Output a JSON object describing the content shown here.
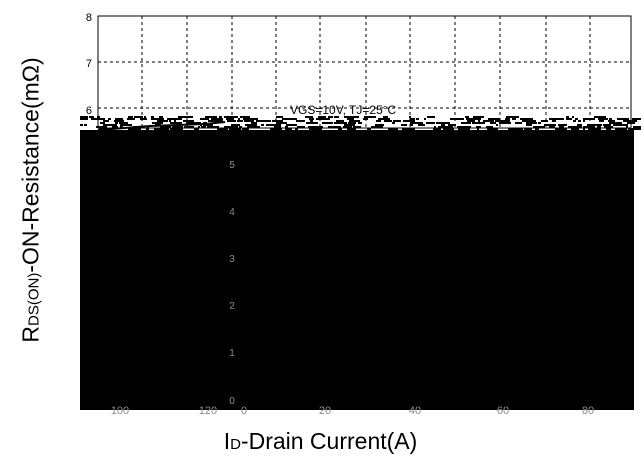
{
  "chart_data": {
    "type": "line",
    "title": "",
    "ylabel": {
      "prefix": "R",
      "subscript": "DS(ON)",
      "suffix": "-ON-Resistance(mΩ)"
    },
    "xlabel": {
      "prefix": "I",
      "subscript": "D",
      "suffix": "-Drain Current(A)"
    },
    "y_ticks_visible": [
      "8",
      "7",
      "6"
    ],
    "y_ticks_dark_region": [
      "5",
      "4",
      "3",
      "2",
      "1",
      "0"
    ],
    "x_ticks_dark_region": [
      "100",
      "120",
      "0",
      "20",
      "40",
      "60",
      "80"
    ],
    "annotation": "VGS=10V, TJ=25°C",
    "grid": true,
    "grid_style": "dashed",
    "region_colors": {
      "background": "#ffffff",
      "dark_region": "#000000",
      "dark_region_text": "#8c8c8c",
      "grid": "#000000"
    }
  }
}
